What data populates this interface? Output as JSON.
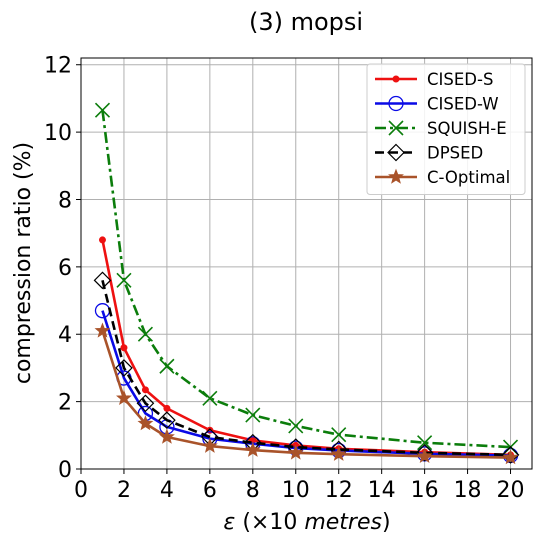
{
  "chart_data": {
    "type": "line",
    "title": "(3) mopsi",
    "xlabel_symbol": "ε",
    "xlabel_rest": " (×10 ",
    "xlabel_unit": "metres",
    "xlabel_close": ")",
    "ylabel": "compression ratio (%)",
    "x": [
      1,
      2,
      3,
      4,
      6,
      8,
      10,
      12,
      16,
      20
    ],
    "xlim": [
      0,
      21
    ],
    "ylim": [
      0,
      12.2
    ],
    "xticks": [
      0,
      2,
      4,
      6,
      8,
      10,
      12,
      14,
      16,
      18,
      20
    ],
    "yticks": [
      0,
      2,
      4,
      6,
      8,
      10,
      12
    ],
    "grid": true,
    "legend_position": "top-right",
    "series": [
      {
        "name": "CISED-S",
        "color": "#ee1111",
        "marker": "dot",
        "dash": "solid",
        "values": [
          6.8,
          3.6,
          2.35,
          1.8,
          1.15,
          0.85,
          0.7,
          0.6,
          0.5,
          0.42
        ]
      },
      {
        "name": "CISED-W",
        "color": "#0a0ae6",
        "marker": "circle",
        "dash": "solid",
        "values": [
          4.7,
          2.7,
          1.65,
          1.25,
          0.9,
          0.75,
          0.62,
          0.55,
          0.45,
          0.4
        ]
      },
      {
        "name": "SQUISH-E",
        "color": "#0b7d0b",
        "marker": "x",
        "dash": "dashdot",
        "values": [
          10.65,
          5.6,
          4.0,
          3.05,
          2.1,
          1.6,
          1.28,
          1.02,
          0.78,
          0.65
        ]
      },
      {
        "name": "DPSED",
        "color": "#000000",
        "marker": "diamond",
        "dash": "dashed",
        "values": [
          5.6,
          3.0,
          1.95,
          1.45,
          0.95,
          0.78,
          0.65,
          0.58,
          0.48,
          0.42
        ]
      },
      {
        "name": "C-Optimal",
        "color": "#a9532a",
        "marker": "star",
        "dash": "solid",
        "values": [
          4.1,
          2.1,
          1.35,
          0.95,
          0.68,
          0.56,
          0.48,
          0.44,
          0.38,
          0.34
        ]
      }
    ]
  }
}
